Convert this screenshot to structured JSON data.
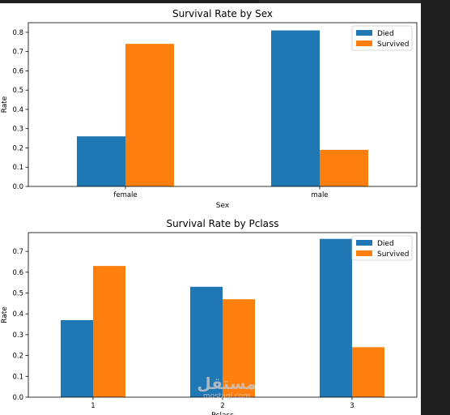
{
  "watermark": {
    "logo": "مستقل",
    "site": "mostaql.com"
  },
  "colors": {
    "died": "#1f77b4",
    "survived": "#ff7f0e",
    "bg": "#ffffff",
    "frame": "#000000"
  },
  "chart_data": [
    {
      "type": "bar",
      "title": "Survival Rate by Sex",
      "xlabel": "Sex",
      "ylabel": "Rate",
      "categories": [
        "female",
        "male"
      ],
      "series": [
        {
          "name": "Died",
          "values": [
            0.26,
            0.81
          ]
        },
        {
          "name": "Survived",
          "values": [
            0.74,
            0.19
          ]
        }
      ],
      "ylim": [
        0,
        0.85
      ],
      "yticks": [
        0.0,
        0.1,
        0.2,
        0.3,
        0.4,
        0.5,
        0.6,
        0.7,
        0.8
      ],
      "legend": "top-right",
      "grid": false
    },
    {
      "type": "bar",
      "title": "Survival Rate by Pclass",
      "xlabel": "Pclass",
      "ylabel": "Rate",
      "categories": [
        "1",
        "2",
        "3"
      ],
      "series": [
        {
          "name": "Died",
          "values": [
            0.37,
            0.53,
            0.76
          ]
        },
        {
          "name": "Survived",
          "values": [
            0.63,
            0.47,
            0.24
          ]
        }
      ],
      "ylim": [
        0,
        0.79
      ],
      "yticks": [
        0.0,
        0.1,
        0.2,
        0.3,
        0.4,
        0.5,
        0.6,
        0.7
      ],
      "legend": "top-right",
      "grid": false
    }
  ]
}
